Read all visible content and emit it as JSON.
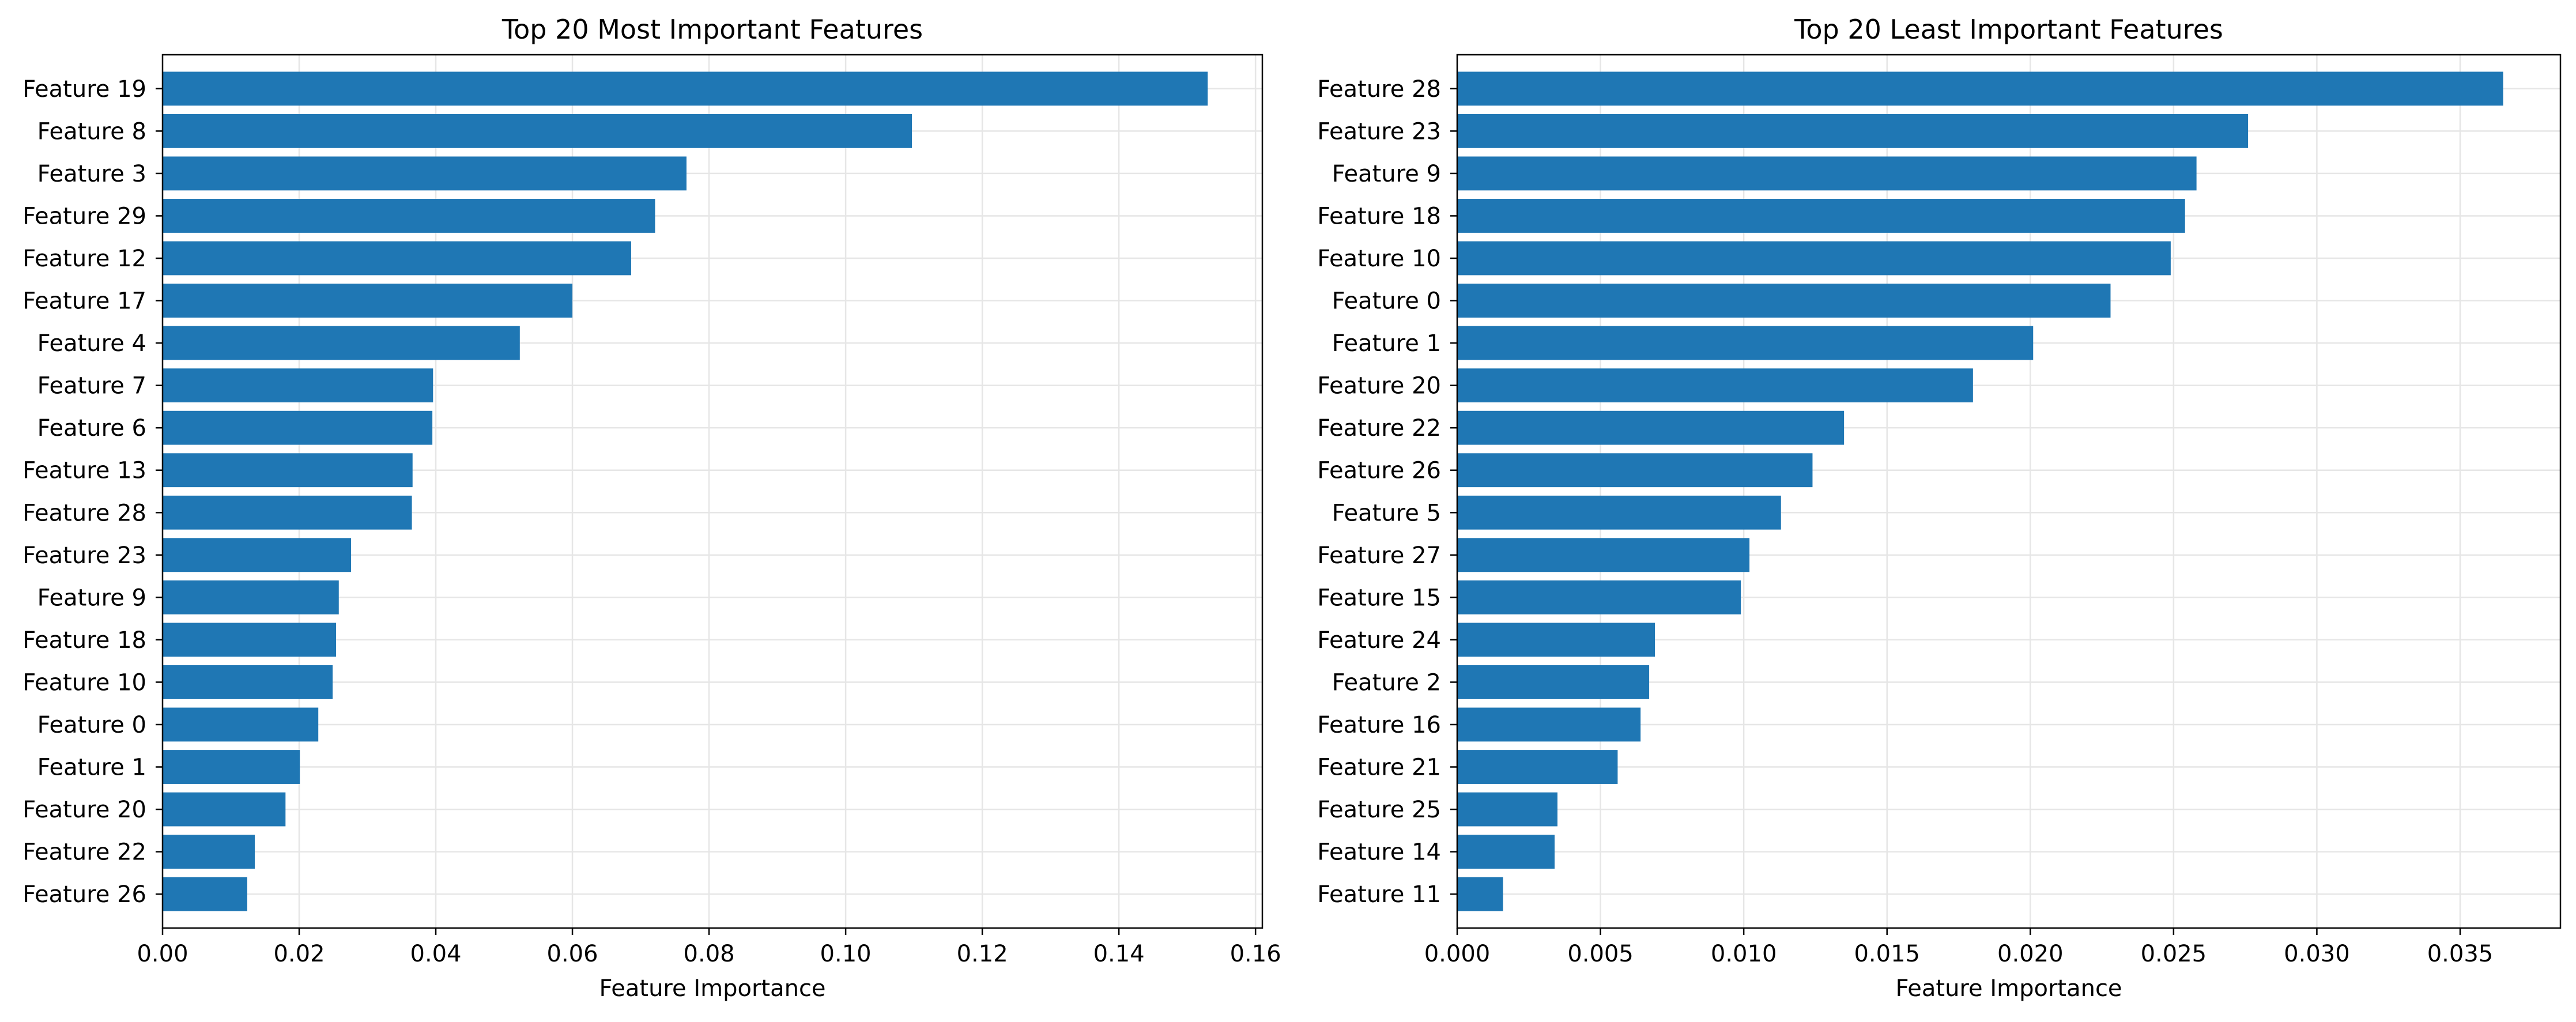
{
  "chart_data": [
    {
      "type": "bar",
      "orientation": "horizontal",
      "title": "Top 20 Most Important Features",
      "xlabel": "Feature Importance",
      "ylabel": "",
      "xlim": [
        0,
        0.161
      ],
      "xticks": [
        "0.00",
        "0.02",
        "0.04",
        "0.06",
        "0.08",
        "0.10",
        "0.12",
        "0.14",
        "0.16"
      ],
      "grid": true,
      "bar_color": "#1f77b4",
      "categories": [
        "Feature 19",
        "Feature 8",
        "Feature 3",
        "Feature 29",
        "Feature 12",
        "Feature 17",
        "Feature 4",
        "Feature 7",
        "Feature 6",
        "Feature 13",
        "Feature 28",
        "Feature 23",
        "Feature 9",
        "Feature 18",
        "Feature 10",
        "Feature 0",
        "Feature 1",
        "Feature 20",
        "Feature 22",
        "Feature 26"
      ],
      "values": [
        0.153,
        0.1097,
        0.0767,
        0.0721,
        0.0686,
        0.06,
        0.0523,
        0.0396,
        0.0395,
        0.0366,
        0.0365,
        0.0276,
        0.0258,
        0.0254,
        0.0249,
        0.0228,
        0.0201,
        0.018,
        0.0135,
        0.0124
      ]
    },
    {
      "type": "bar",
      "orientation": "horizontal",
      "title": "Top 20 Least Important Features",
      "xlabel": "Feature Importance",
      "ylabel": "",
      "xlim": [
        0,
        0.0385
      ],
      "xticks": [
        "0.000",
        "0.005",
        "0.010",
        "0.015",
        "0.020",
        "0.025",
        "0.030",
        "0.035"
      ],
      "grid": true,
      "bar_color": "#1f77b4",
      "categories": [
        "Feature 28",
        "Feature 23",
        "Feature 9",
        "Feature 18",
        "Feature 10",
        "Feature 0",
        "Feature 1",
        "Feature 20",
        "Feature 22",
        "Feature 26",
        "Feature 5",
        "Feature 27",
        "Feature 15",
        "Feature 24",
        "Feature 2",
        "Feature 16",
        "Feature 21",
        "Feature 25",
        "Feature 14",
        "Feature 11"
      ],
      "values": [
        0.0365,
        0.0276,
        0.0258,
        0.0254,
        0.0249,
        0.0228,
        0.0201,
        0.018,
        0.0135,
        0.0124,
        0.0113,
        0.0102,
        0.0099,
        0.0069,
        0.0067,
        0.0064,
        0.0056,
        0.0035,
        0.0034,
        0.0016
      ]
    }
  ]
}
